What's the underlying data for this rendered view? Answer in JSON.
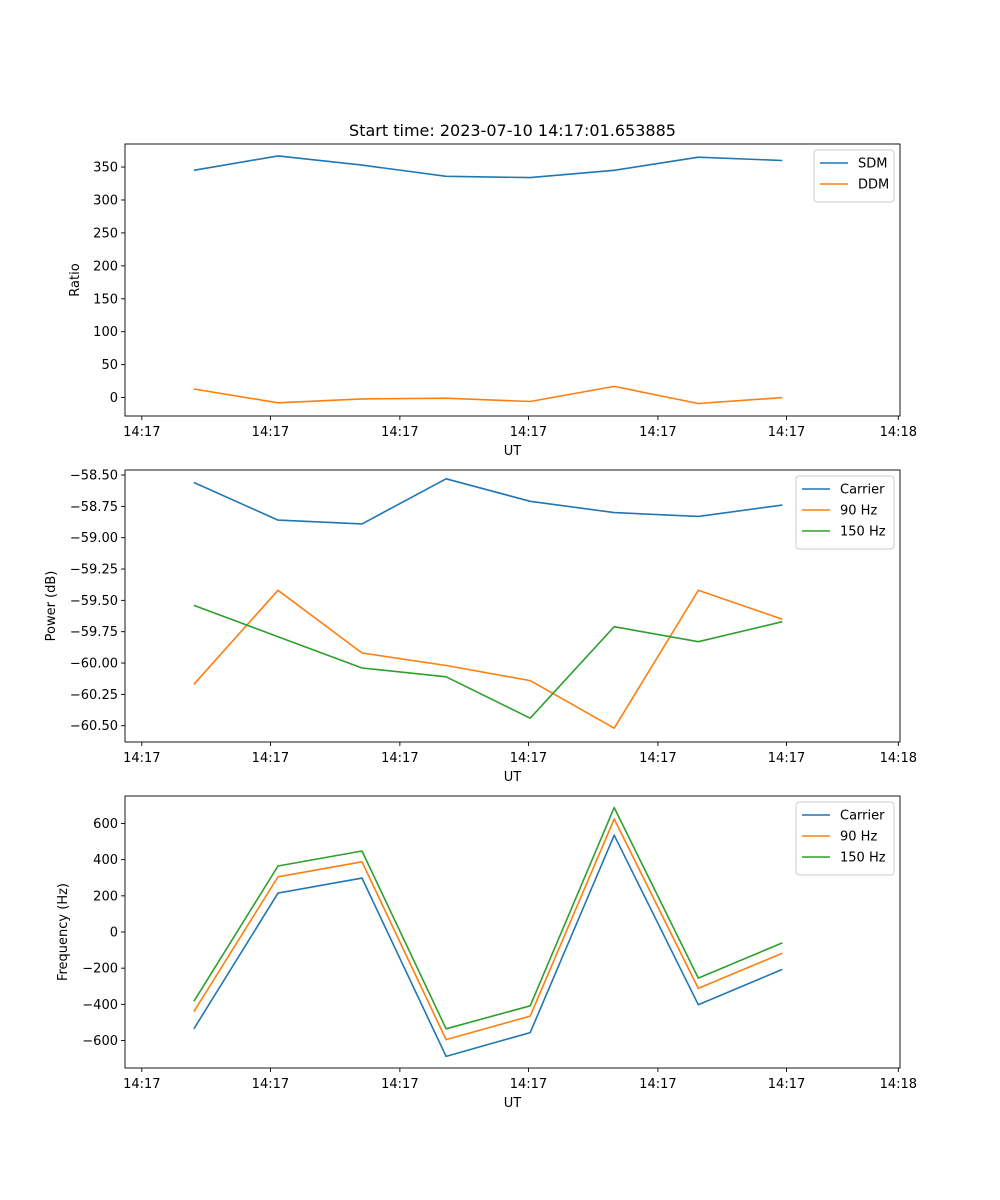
{
  "title": "Start time: 2023-07-10 14:17:01.653885",
  "chart_data": [
    {
      "type": "line",
      "xlabel": "UT",
      "ylabel": "Ratio",
      "x": [
        1,
        2,
        3,
        4,
        5,
        6,
        7,
        8
      ],
      "xlim": [
        0.18,
        9.4
      ],
      "x_ticks": [
        0.38,
        1.91,
        3.45,
        4.98,
        6.52,
        8.05,
        9.38
      ],
      "x_tick_labels": [
        "14:17",
        "14:17",
        "14:17",
        "14:17",
        "14:17",
        "14:17",
        "14:18"
      ],
      "ylim": [
        -28,
        385
      ],
      "y_ticks": [
        0,
        50,
        100,
        150,
        200,
        250,
        300,
        350
      ],
      "y_tick_labels": [
        "0",
        "50",
        "100",
        "150",
        "200",
        "250",
        "300",
        "350"
      ],
      "legend_position": "top-right",
      "series": [
        {
          "name": "SDM",
          "color": "#1f77b4",
          "values": [
            345,
            367,
            353,
            336,
            334,
            345,
            365,
            360
          ]
        },
        {
          "name": "DDM",
          "color": "#ff7f0e",
          "values": [
            13,
            -8,
            -2,
            -1,
            -6,
            17,
            -9,
            0
          ]
        }
      ]
    },
    {
      "type": "line",
      "xlabel": "UT",
      "ylabel": "Power (dB)",
      "x": [
        1,
        2,
        3,
        4,
        5,
        6,
        7,
        8
      ],
      "xlim": [
        0.18,
        9.4
      ],
      "x_ticks": [
        0.38,
        1.91,
        3.45,
        4.98,
        6.52,
        8.05,
        9.38
      ],
      "x_tick_labels": [
        "14:17",
        "14:17",
        "14:17",
        "14:17",
        "14:17",
        "14:17",
        "14:18"
      ],
      "ylim": [
        -60.63,
        -58.46
      ],
      "y_ticks": [
        -58.5,
        -58.75,
        -59.0,
        -59.25,
        -59.5,
        -59.75,
        -60.0,
        -60.25,
        -60.5
      ],
      "y_tick_labels": [
        "−58.50",
        "−58.75",
        "−59.00",
        "−59.25",
        "−59.50",
        "−59.75",
        "−60.00",
        "−60.25",
        "−60.50"
      ],
      "legend_position": "top-right",
      "series": [
        {
          "name": "Carrier",
          "color": "#1f77b4",
          "values": [
            -58.56,
            -58.86,
            -58.89,
            -58.53,
            -58.71,
            -58.8,
            -58.83,
            -58.74
          ]
        },
        {
          "name": "90 Hz",
          "color": "#ff7f0e",
          "values": [
            -60.17,
            -59.42,
            -59.92,
            -60.02,
            -60.14,
            -60.52,
            -59.42,
            -59.65
          ]
        },
        {
          "name": "150 Hz",
          "color": "#2ca02c",
          "values": [
            -59.54,
            -59.79,
            -60.04,
            -60.11,
            -60.44,
            -59.71,
            -59.83,
            -59.67
          ]
        }
      ]
    },
    {
      "type": "line",
      "xlabel": "UT",
      "ylabel": "Frequency (Hz)",
      "x": [
        1,
        2,
        3,
        4,
        5,
        6,
        7,
        8
      ],
      "xlim": [
        0.18,
        9.4
      ],
      "x_ticks": [
        0.38,
        1.91,
        3.45,
        4.98,
        6.52,
        8.05,
        9.38
      ],
      "x_tick_labels": [
        "14:17",
        "14:17",
        "14:17",
        "14:17",
        "14:17",
        "14:17",
        "14:18"
      ],
      "ylim": [
        -752,
        752
      ],
      "y_ticks": [
        600,
        400,
        200,
        0,
        -200,
        -400,
        -600
      ],
      "y_tick_labels": [
        "600",
        "400",
        "200",
        "0",
        "−200",
        "−400",
        "−600"
      ],
      "legend_position": "top-right",
      "series": [
        {
          "name": "Carrier",
          "color": "#1f77b4",
          "values": [
            -535,
            215,
            298,
            -688,
            -556,
            535,
            -402,
            -207
          ]
        },
        {
          "name": "90 Hz",
          "color": "#ff7f0e",
          "values": [
            -440,
            305,
            388,
            -595,
            -465,
            625,
            -312,
            -117
          ]
        },
        {
          "name": "150 Hz",
          "color": "#2ca02c",
          "values": [
            -383,
            365,
            448,
            -535,
            -408,
            688,
            -255,
            -60
          ]
        }
      ]
    }
  ]
}
